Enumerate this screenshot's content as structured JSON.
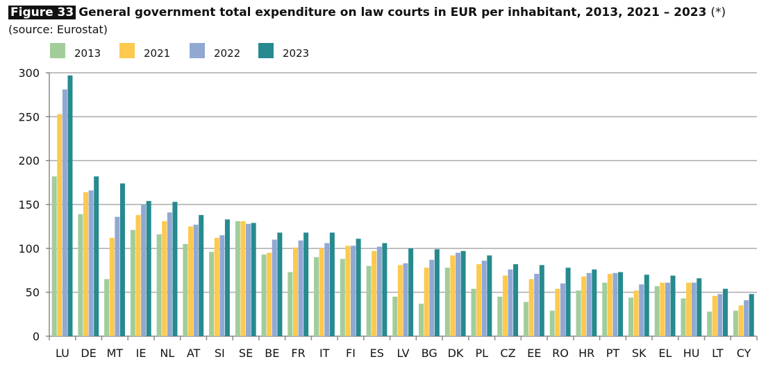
{
  "chart_data": {
    "type": "bar",
    "figure_label": "Figure 33",
    "title": "General government total expenditure on law courts in EUR per inhabitant, 2013, 2021 – 2023",
    "title_note": "(*)",
    "subtitle": "(source: Eurostat)",
    "xlabel": "",
    "ylabel": "",
    "ylim": [
      0,
      300
    ],
    "yticks": [
      0,
      50,
      100,
      150,
      200,
      250,
      300
    ],
    "grid": true,
    "legend_position": "top-left",
    "categories": [
      "LU",
      "DE",
      "MT",
      "IE",
      "NL",
      "AT",
      "SI",
      "SE",
      "BE",
      "FR",
      "IT",
      "FI",
      "ES",
      "LV",
      "BG",
      "DK",
      "PL",
      "CZ",
      "EE",
      "RO",
      "HR",
      "PT",
      "SK",
      "EL",
      "HU",
      "LT",
      "CY"
    ],
    "series": [
      {
        "name": "2013",
        "color": "#a2cd9b",
        "values": [
          182,
          139,
          65,
          121,
          116,
          105,
          96,
          131,
          93,
          73,
          90,
          88,
          80,
          45,
          37,
          78,
          54,
          45,
          39,
          29,
          52,
          61,
          44,
          57,
          43,
          28,
          29
        ]
      },
      {
        "name": "2021",
        "color": "#fdc94e",
        "values": [
          253,
          164,
          112,
          138,
          131,
          125,
          112,
          131,
          95,
          101,
          100,
          103,
          97,
          81,
          78,
          92,
          82,
          69,
          65,
          54,
          68,
          71,
          52,
          61,
          61,
          46,
          35
        ]
      },
      {
        "name": "2022",
        "color": "#91a8d3",
        "values": [
          281,
          166,
          136,
          150,
          141,
          127,
          115,
          128,
          110,
          109,
          106,
          103,
          102,
          83,
          87,
          95,
          86,
          76,
          71,
          60,
          72,
          72,
          59,
          61,
          61,
          48,
          41
        ]
      },
      {
        "name": "2023",
        "color": "#268a8e",
        "values": [
          297,
          182,
          174,
          154,
          153,
          138,
          133,
          129,
          118,
          118,
          118,
          111,
          106,
          100,
          99,
          97,
          92,
          82,
          81,
          78,
          76,
          73,
          70,
          69,
          66,
          54,
          48
        ]
      }
    ]
  }
}
